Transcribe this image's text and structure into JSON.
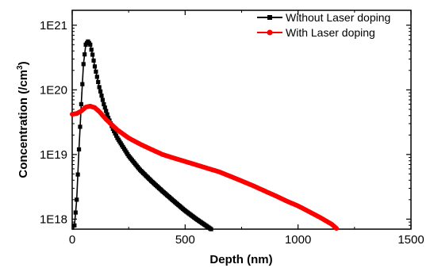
{
  "chart_data": {
    "type": "line",
    "xlabel": "Depth (nm)",
    "ylabel": {
      "prefix": "Concentration (/cm",
      "sup": "3",
      "suffix": ")"
    },
    "xlim": [
      0,
      1500
    ],
    "ylim": [
      7e+17,
      1.7e+21
    ],
    "yscale": "log",
    "grid": false,
    "legend_position": "top-right",
    "x_ticks": [
      {
        "value": 0,
        "label": "0"
      },
      {
        "value": 500,
        "label": "500"
      },
      {
        "value": 1000,
        "label": "1000"
      },
      {
        "value": 1500,
        "label": "1500"
      }
    ],
    "y_ticks": [
      {
        "value": 1e+18,
        "label": "1E18"
      },
      {
        "value": 1e+19,
        "label": "1E19"
      },
      {
        "value": 1e+20,
        "label": "1E20"
      },
      {
        "value": 1e+21,
        "label": "1E21"
      }
    ],
    "series": [
      {
        "name": "Without Laser doping",
        "color": "#000000",
        "marker": "square",
        "points": [
          [
            0,
            4e+17
          ],
          [
            10,
            8e+17
          ],
          [
            20,
            2e+18
          ],
          [
            30,
            1.2e+19
          ],
          [
            40,
            6e+19
          ],
          [
            50,
            2.5e+20
          ],
          [
            60,
            5e+20
          ],
          [
            70,
            5.6e+20
          ],
          [
            80,
            5e+20
          ],
          [
            90,
            3.5e+20
          ],
          [
            100,
            2.3e+20
          ],
          [
            120,
            1.1e+20
          ],
          [
            140,
            6e+19
          ],
          [
            160,
            3.7e+19
          ],
          [
            180,
            2.5e+19
          ],
          [
            200,
            1.8e+19
          ],
          [
            250,
            9.5e+18
          ],
          [
            300,
            5.8e+18
          ],
          [
            350,
            3.9e+18
          ],
          [
            400,
            2.7e+18
          ],
          [
            450,
            1.9e+18
          ],
          [
            500,
            1.35e+18
          ],
          [
            550,
            1e+18
          ],
          [
            600,
            7.6e+17
          ],
          [
            620,
            6.8e+17
          ]
        ]
      },
      {
        "name": "With Laser doping",
        "color": "#ff0000",
        "marker": "circle",
        "points": [
          [
            0,
            4.2e+19
          ],
          [
            20,
            4.3e+19
          ],
          [
            40,
            4.7e+19
          ],
          [
            60,
            5.4e+19
          ],
          [
            80,
            5.6e+19
          ],
          [
            100,
            5.3e+19
          ],
          [
            120,
            4.6e+19
          ],
          [
            150,
            3.5e+19
          ],
          [
            200,
            2.4e+19
          ],
          [
            250,
            1.8e+19
          ],
          [
            300,
            1.45e+19
          ],
          [
            350,
            1.2e+19
          ],
          [
            400,
            1e+19
          ],
          [
            450,
            8.8e+18
          ],
          [
            500,
            7.8e+18
          ],
          [
            550,
            6.9e+18
          ],
          [
            600,
            6.1e+18
          ],
          [
            650,
            5.4e+18
          ],
          [
            700,
            4.6e+18
          ],
          [
            750,
            3.9e+18
          ],
          [
            800,
            3.3e+18
          ],
          [
            850,
            2.75e+18
          ],
          [
            900,
            2.3e+18
          ],
          [
            950,
            1.9e+18
          ],
          [
            1000,
            1.6e+18
          ],
          [
            1050,
            1.3e+18
          ],
          [
            1100,
            1.05e+18
          ],
          [
            1150,
            8.3e+17
          ],
          [
            1170,
            7.2e+17
          ]
        ]
      }
    ]
  }
}
